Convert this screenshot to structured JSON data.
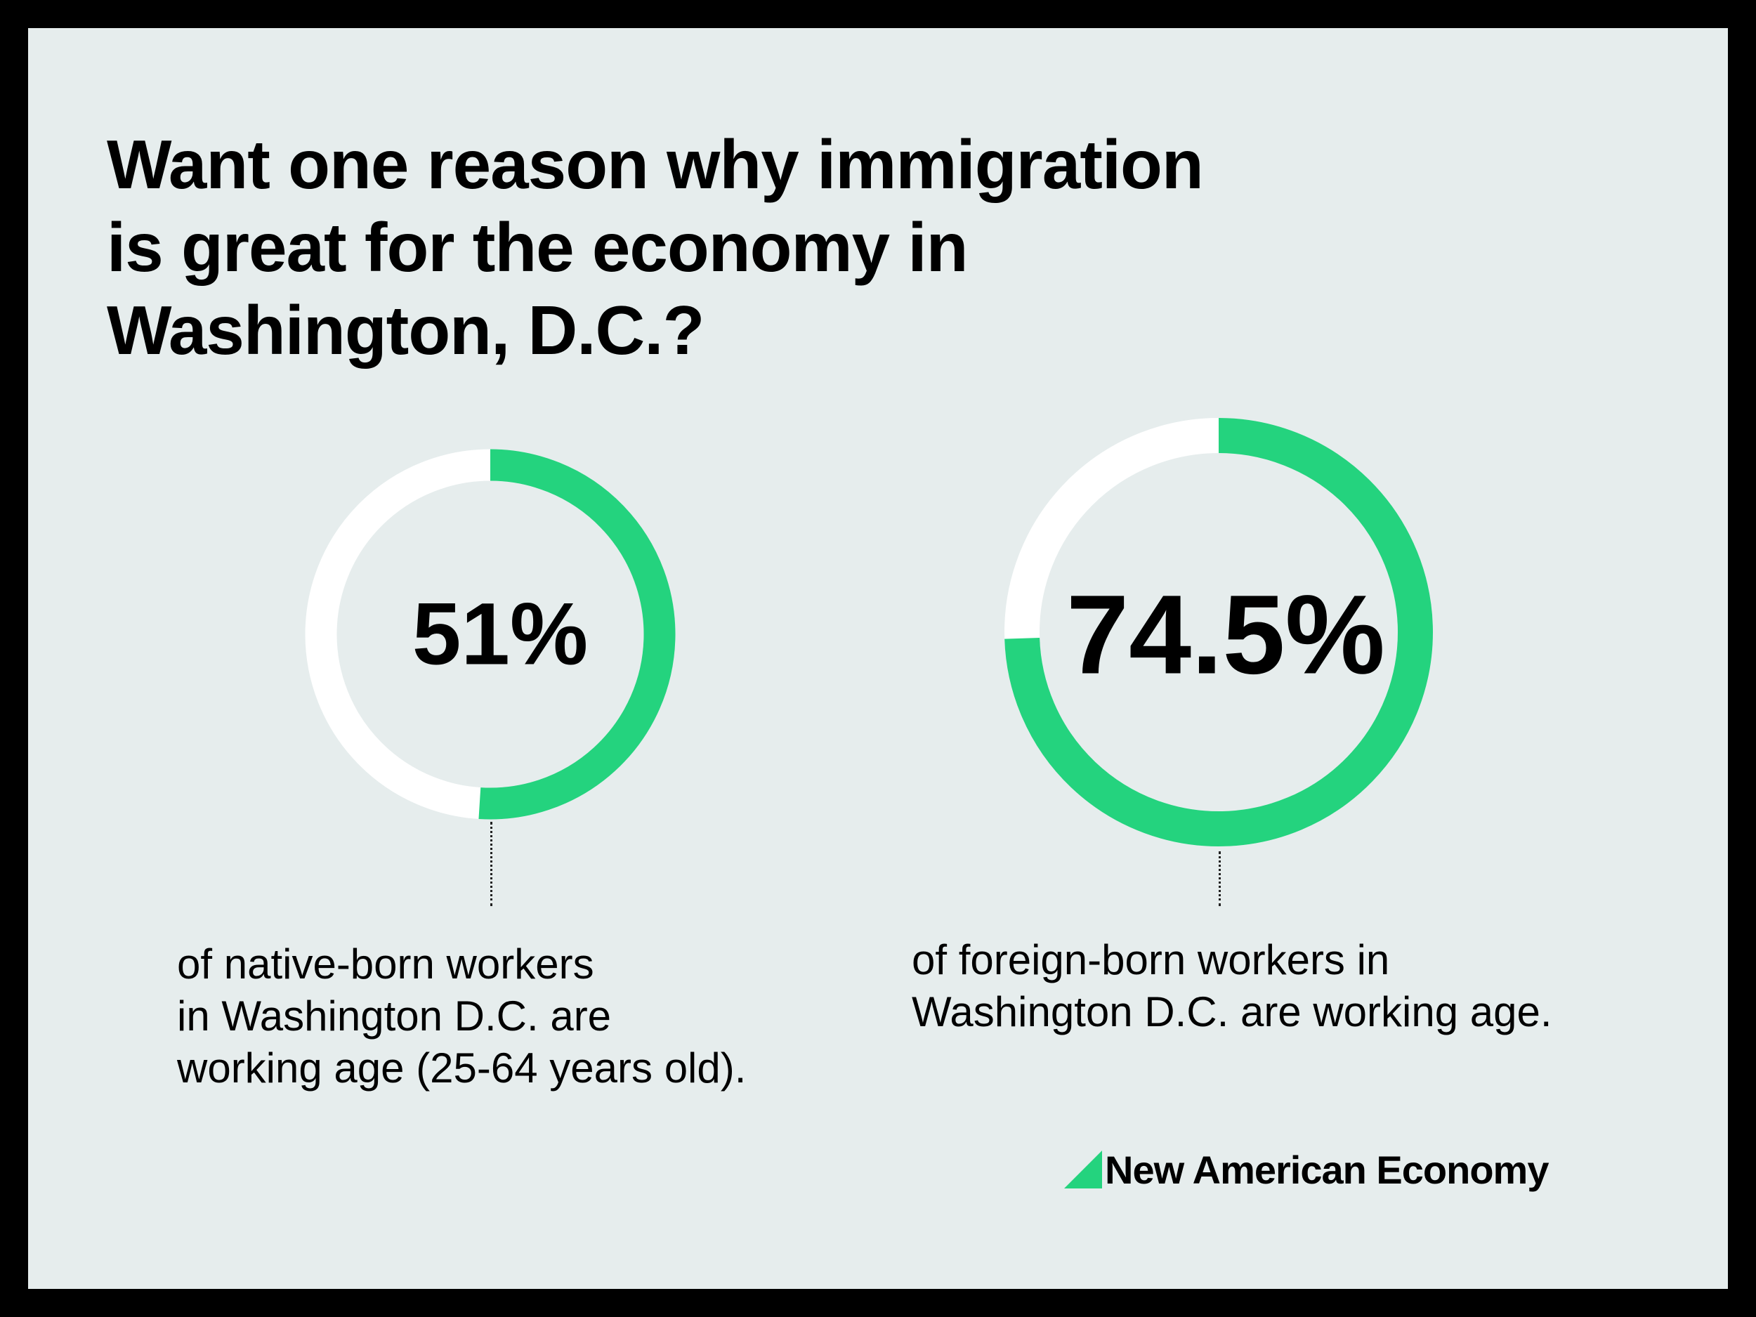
{
  "title_lines": [
    "Want one reason why immigration",
    "is great for the economy in",
    "Washington, D.C.?"
  ],
  "colors": {
    "background": "#e6eded",
    "frame": "#000000",
    "accent": "#24d37e",
    "track": "#ffffff"
  },
  "chart_data": [
    {
      "type": "pie",
      "variant": "donut",
      "value": 51,
      "max": 100,
      "label": "51%",
      "caption_lines": [
        "of native-born workers",
        "in Washington D.C. are",
        "working age (25-64 years old)."
      ]
    },
    {
      "type": "pie",
      "variant": "donut",
      "value": 74.5,
      "max": 100,
      "label": "74.5%",
      "caption_lines": [
        "of foreign-born workers in",
        "Washington D.C. are working age."
      ]
    }
  ],
  "brand": {
    "name": "New American Economy",
    "icon": "green-triangle-logo-icon"
  }
}
